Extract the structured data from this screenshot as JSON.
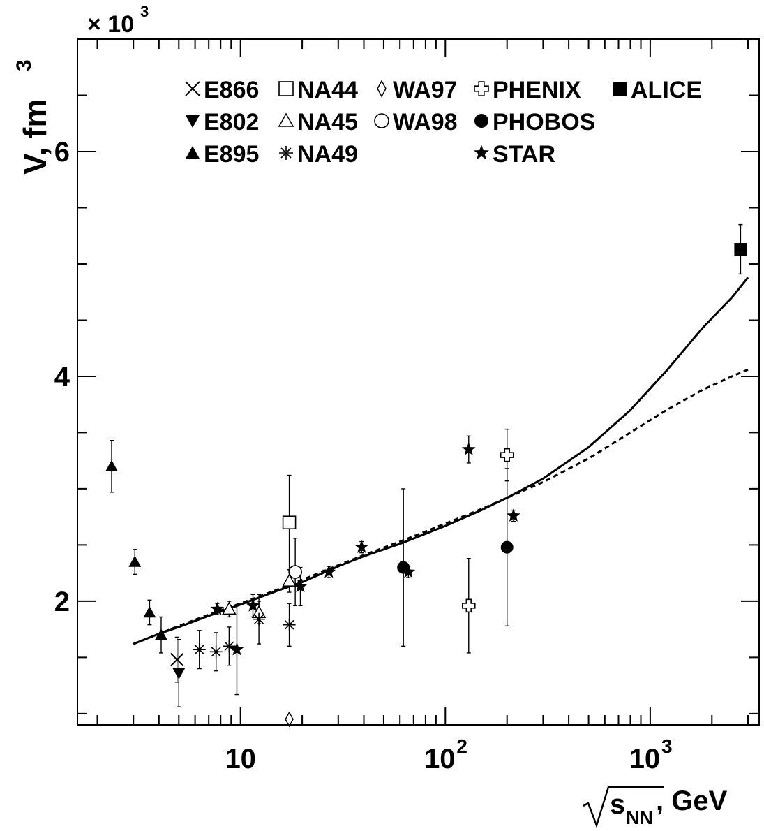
{
  "chart_data": {
    "type": "scatter",
    "y_multiplier_label": "× 10",
    "y_multiplier_exp": "3",
    "ylabel": "V, fm",
    "ylabel_exp": "3",
    "xlabel_root": "s",
    "xlabel_sub": "NN",
    "xlabel_unit": ", GeV",
    "x_log": true,
    "xlim": [
      1.6,
      3400
    ],
    "ylim": [
      0.9,
      7.0
    ],
    "x_tick_labels": [
      "10",
      "10",
      "10"
    ],
    "x_tick_exps": [
      "",
      "2",
      "3"
    ],
    "y_ticks": [
      2,
      4,
      6
    ],
    "y_tick_labels": [
      "2",
      "4",
      "6"
    ],
    "series": [
      {
        "name": "E866",
        "marker": "cross",
        "points": [
          {
            "x": 4.9,
            "y": 1.48,
            "err": 0.2
          }
        ]
      },
      {
        "name": "E802",
        "marker": "tri-down",
        "points": [
          {
            "x": 5.0,
            "y": 1.36,
            "err": 0.3
          }
        ]
      },
      {
        "name": "E895",
        "marker": "tri-up",
        "points": [
          {
            "x": 2.35,
            "y": 3.2,
            "err": 0.23
          },
          {
            "x": 3.05,
            "y": 2.35,
            "err": 0.11
          },
          {
            "x": 3.6,
            "y": 1.9,
            "err": 0.11
          },
          {
            "x": 4.1,
            "y": 1.7,
            "err": 0.16
          }
        ]
      },
      {
        "name": "NA44",
        "marker": "square-open",
        "points": [
          {
            "x": 17.3,
            "y": 2.7,
            "err": 0.42
          }
        ]
      },
      {
        "name": "NA45",
        "marker": "tri-open",
        "points": [
          {
            "x": 8.8,
            "y": 1.93,
            "err": 0.07
          },
          {
            "x": 12.3,
            "y": 1.9,
            "err": 0.1
          },
          {
            "x": 17.3,
            "y": 2.18,
            "err": 0.1
          }
        ]
      },
      {
        "name": "NA49",
        "marker": "asterisk",
        "points": [
          {
            "x": 6.3,
            "y": 1.57,
            "err": 0.17
          },
          {
            "x": 7.6,
            "y": 1.55,
            "err": 0.17
          },
          {
            "x": 8.8,
            "y": 1.6,
            "err": 0.17
          },
          {
            "x": 12.3,
            "y": 1.84,
            "err": 0.22
          },
          {
            "x": 17.3,
            "y": 1.79,
            "err": 0.19
          }
        ]
      },
      {
        "name": "WA97",
        "marker": "diamond-open",
        "points": [
          {
            "x": 17.3,
            "y": 0.95,
            "err": 0
          }
        ]
      },
      {
        "name": "WA98",
        "marker": "circle-open",
        "points": [
          {
            "x": 18.5,
            "y": 2.26,
            "err": 0.3
          }
        ]
      },
      {
        "name": "PHENIX",
        "marker": "cross-open",
        "points": [
          {
            "x": 130,
            "y": 1.96,
            "err": 0.42
          },
          {
            "x": 200,
            "y": 3.3,
            "err": 0.23
          }
        ]
      },
      {
        "name": "PHOBOS",
        "marker": "circle",
        "points": [
          {
            "x": 62.4,
            "y": 2.3,
            "err": 0.7
          },
          {
            "x": 200,
            "y": 2.48,
            "err": 0.7
          }
        ]
      },
      {
        "name": "STAR",
        "marker": "star",
        "points": [
          {
            "x": 7.7,
            "y": 1.93,
            "err": 0.05
          },
          {
            "x": 9.6,
            "y": 1.57,
            "err": 0.4
          },
          {
            "x": 11.5,
            "y": 1.96,
            "err": 0.1
          },
          {
            "x": 19.6,
            "y": 2.13,
            "err": 0.17
          },
          {
            "x": 27,
            "y": 2.26,
            "err": 0.05
          },
          {
            "x": 39,
            "y": 2.48,
            "err": 0.05
          },
          {
            "x": 66,
            "y": 2.26,
            "err": 0.05
          },
          {
            "x": 130,
            "y": 3.35,
            "err": 0.12
          },
          {
            "x": 215,
            "y": 2.76,
            "err": 0.05
          }
        ]
      },
      {
        "name": "ALICE",
        "marker": "square",
        "points": [
          {
            "x": 2760,
            "y": 5.13,
            "err": 0.22
          }
        ]
      }
    ],
    "curves": [
      {
        "style": "solid",
        "x": [
          3,
          4,
          5,
          7,
          10,
          15,
          20,
          30,
          40,
          60,
          80,
          100,
          150,
          200,
          300,
          500,
          800,
          1200,
          1800,
          2500,
          3000
        ],
        "y": [
          1.62,
          1.71,
          1.77,
          1.87,
          1.97,
          2.09,
          2.17,
          2.31,
          2.4,
          2.51,
          2.6,
          2.67,
          2.81,
          2.92,
          3.09,
          3.37,
          3.7,
          4.05,
          4.43,
          4.7,
          4.88
        ]
      },
      {
        "style": "dashed",
        "x": [
          3,
          4,
          5,
          7,
          10,
          15,
          20,
          30,
          40,
          60,
          80,
          100,
          150,
          200,
          300,
          500,
          800,
          1200,
          1800,
          2500,
          3000
        ],
        "y": [
          1.62,
          1.71,
          1.78,
          1.88,
          1.98,
          2.1,
          2.19,
          2.32,
          2.41,
          2.53,
          2.62,
          2.69,
          2.82,
          2.92,
          3.06,
          3.27,
          3.5,
          3.7,
          3.88,
          4.0,
          4.06
        ]
      }
    ],
    "legend": {
      "position": "top",
      "columns": [
        [
          "E866",
          "E802",
          "E895"
        ],
        [
          "NA44",
          "NA45",
          "NA49"
        ],
        [
          "WA97",
          "WA98"
        ],
        [
          "PHENIX",
          "PHOBOS",
          "STAR"
        ],
        [
          "ALICE"
        ]
      ]
    }
  }
}
